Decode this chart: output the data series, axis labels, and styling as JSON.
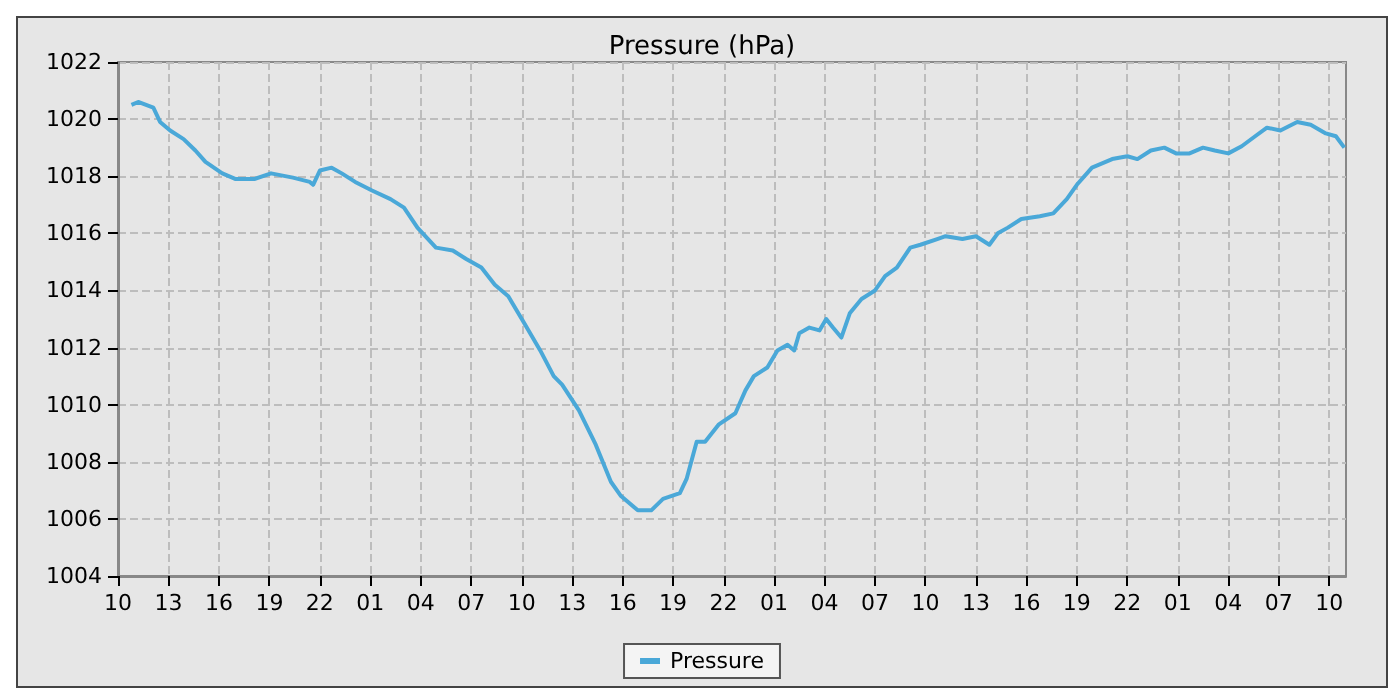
{
  "chart_data": {
    "type": "line",
    "title": "Pressure (hPa)",
    "xlim": [
      "--01-01T10:00",
      "--01-04T11:00"
    ],
    "xticks": [
      {
        "value": "--01-01T10:00",
        "label": "10"
      },
      {
        "value": "--01-01T13:00",
        "label": "13"
      },
      {
        "value": "--01-01T16:00",
        "label": "16"
      },
      {
        "value": "--01-01T19:00",
        "label": "19"
      },
      {
        "value": "--01-01T22:00",
        "label": "22"
      },
      {
        "value": "--01-02T01:00",
        "label": "01"
      },
      {
        "value": "--01-02T04:00",
        "label": "04"
      },
      {
        "value": "--01-02T07:00",
        "label": "07"
      },
      {
        "value": "--01-02T10:00",
        "label": "10"
      },
      {
        "value": "--01-02T13:00",
        "label": "13"
      },
      {
        "value": "--01-02T16:00",
        "label": "16"
      },
      {
        "value": "--01-02T19:00",
        "label": "19"
      },
      {
        "value": "--01-02T22:00",
        "label": "22"
      },
      {
        "value": "--01-03T01:00",
        "label": "01"
      },
      {
        "value": "--01-03T04:00",
        "label": "04"
      },
      {
        "value": "--01-03T07:00",
        "label": "07"
      },
      {
        "value": "--01-03T10:00",
        "label": "10"
      },
      {
        "value": "--01-03T13:00",
        "label": "13"
      },
      {
        "value": "--01-03T16:00",
        "label": "16"
      },
      {
        "value": "--01-03T19:00",
        "label": "19"
      },
      {
        "value": "--01-03T22:00",
        "label": "22"
      },
      {
        "value": "--01-04T01:00",
        "label": "01"
      },
      {
        "value": "--01-04T04:00",
        "label": "04"
      },
      {
        "value": "--01-04T07:00",
        "label": "07"
      },
      {
        "value": "--01-04T10:00",
        "label": "10"
      }
    ],
    "ylim": [
      1004,
      1022
    ],
    "yticks": [
      1004,
      1006,
      1008,
      1010,
      1012,
      1014,
      1016,
      1018,
      1020,
      1022
    ],
    "grid": true,
    "legend": "bottom",
    "marker": "none",
    "line_style": "solid",
    "series": [
      {
        "name": "Pressure",
        "color": "#4aa8d8",
        "x": [
          "--01-01T10:48",
          "--01-01T11:12",
          "--01-01T12:06",
          "--01-01T12:30",
          "--01-01T13:06",
          "--01-01T13:54",
          "--01-01T14:36",
          "--01-01T15:12",
          "--01-01T16:12",
          "--01-01T17:00",
          "--01-01T18:06",
          "--01-01T19:06",
          "--01-01T20:24",
          "--01-01T21:24",
          "--01-01T21:36",
          "--01-01T22:00",
          "--01-01T22:42",
          "--01-01T23:18",
          "--01-02T00:06",
          "--01-02T01:06",
          "--01-02T02:12",
          "--01-02T03:00",
          "--01-02T03:48",
          "--01-02T04:54",
          "--01-02T05:54",
          "--01-02T06:42",
          "--01-02T07:36",
          "--01-02T08:24",
          "--01-02T09:12",
          "--01-02T10:06",
          "--01-02T11:06",
          "--01-02T11:54",
          "--01-02T12:24",
          "--01-02T13:24",
          "--01-02T14:24",
          "--01-02T15:18",
          "--01-02T15:54",
          "--01-02T16:54",
          "--01-02T17:42",
          "--01-02T18:24",
          "--01-02T19:24",
          "--01-02T19:48",
          "--01-02T20:24",
          "--01-02T20:54",
          "--01-02T21:42",
          "--01-02T22:42",
          "--01-02T23:18",
          "--01-02T23:48",
          "--01-03T00:36",
          "--01-03T01:12",
          "--01-03T01:48",
          "--01-03T02:12",
          "--01-03T02:30",
          "--01-03T03:06",
          "--01-03T03:42",
          "--01-03T04:06",
          "--01-03T04:30",
          "--01-03T05:00",
          "--01-03T05:30",
          "--01-03T06:12",
          "--01-03T07:00",
          "--01-03T07:36",
          "--01-03T08:18",
          "--01-03T09:06",
          "--01-03T09:42",
          "--01-03T10:42",
          "--01-03T11:12",
          "--01-03T12:12",
          "--01-03T13:00",
          "--01-03T13:48",
          "--01-03T14:18",
          "--01-03T14:54",
          "--01-03T15:42",
          "--01-03T16:48",
          "--01-03T17:36",
          "--01-03T18:24",
          "--01-03T19:00",
          "--01-03T19:54",
          "--01-03T21:06",
          "--01-03T22:00",
          "--01-03T22:36",
          "--01-03T23:24",
          "--01-04T00:12",
          "--01-04T00:54",
          "--01-04T01:42",
          "--01-04T02:30",
          "--01-04T03:12",
          "--01-04T04:00",
          "--01-04T04:48",
          "--01-04T05:36",
          "--01-04T06:18",
          "--01-04T07:06",
          "--01-04T08:06",
          "--01-04T08:54",
          "--01-04T09:48",
          "--01-04T10:24",
          "--01-04T10:54"
        ],
        "values": [
          1020.5,
          1020.6,
          1020.4,
          1019.9,
          1019.6,
          1019.3,
          1018.9,
          1018.5,
          1018.1,
          1017.9,
          1017.9,
          1018.1,
          1017.95,
          1017.8,
          1017.7,
          1018.2,
          1018.3,
          1018.1,
          1017.8,
          1017.5,
          1017.2,
          1016.9,
          1016.2,
          1015.5,
          1015.4,
          1015.1,
          1014.8,
          1014.2,
          1013.8,
          1012.9,
          1011.9,
          1011.0,
          1010.7,
          1009.8,
          1008.6,
          1007.3,
          1006.8,
          1006.3,
          1006.3,
          1006.7,
          1006.9,
          1007.4,
          1008.7,
          1008.7,
          1009.3,
          1009.7,
          1010.5,
          1011.0,
          1011.3,
          1011.9,
          1012.1,
          1011.9,
          1012.5,
          1012.7,
          1012.6,
          1013.0,
          1012.7,
          1012.35,
          1013.2,
          1013.7,
          1014.0,
          1014.5,
          1014.8,
          1015.5,
          1015.6,
          1015.8,
          1015.9,
          1015.8,
          1015.9,
          1015.6,
          1016.0,
          1016.2,
          1016.5,
          1016.6,
          1016.7,
          1017.2,
          1017.7,
          1018.3,
          1018.6,
          1018.7,
          1018.6,
          1018.9,
          1019.0,
          1018.8,
          1018.8,
          1019.0,
          1018.9,
          1018.8,
          1019.05,
          1019.4,
          1019.7,
          1019.6,
          1019.9,
          1019.8,
          1019.5,
          1019.4,
          1019.0
        ]
      }
    ]
  }
}
